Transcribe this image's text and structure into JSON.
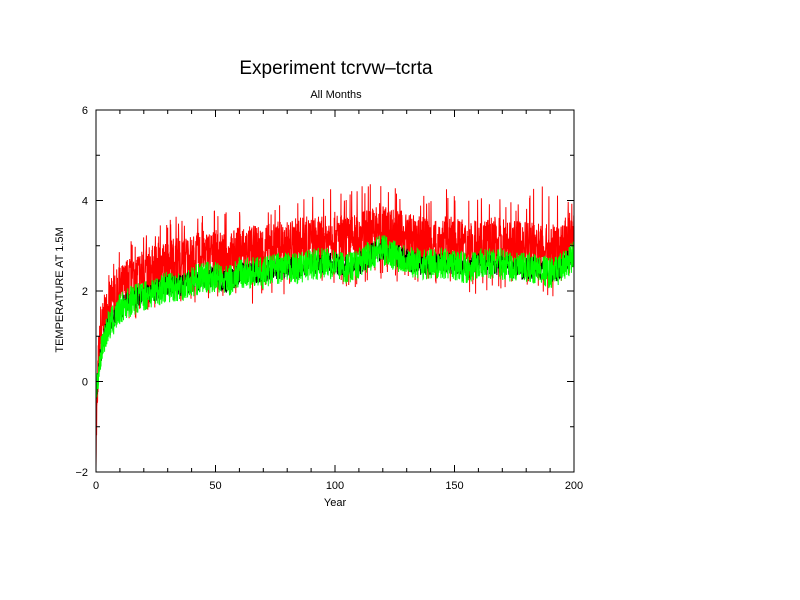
{
  "chart_data": {
    "type": "line",
    "title": "Experiment tcrvw–tcrta",
    "subtitle": "All Months",
    "xlabel": "Year",
    "ylabel": "TEMPERATURE AT 1.5M",
    "xlim": [
      0,
      200
    ],
    "ylim": [
      -2,
      6
    ],
    "xticks": [
      "0",
      "50",
      "100",
      "150",
      "200"
    ],
    "yticks": [
      "−2",
      "0",
      "2",
      "4",
      "6"
    ],
    "xtick_values": [
      0,
      50,
      100,
      150,
      200
    ],
    "ytick_values": [
      -2,
      0,
      2,
      4,
      6
    ],
    "grid": false,
    "legend": "none",
    "colors": {
      "monthly": "#ff0000",
      "annual": "#000000",
      "smoothed": "#00ff00"
    },
    "x": [
      0,
      1,
      2,
      3,
      5,
      8,
      10,
      15,
      20,
      25,
      30,
      35,
      40,
      45,
      50,
      55,
      60,
      65,
      70,
      75,
      80,
      85,
      90,
      95,
      100,
      105,
      110,
      115,
      118,
      120,
      125,
      130,
      135,
      140,
      145,
      150,
      155,
      160,
      165,
      170,
      175,
      180,
      185,
      190,
      195,
      200
    ],
    "series": [
      {
        "color": "#ff0000",
        "values": [
          -1.5,
          0.5,
          1.0,
          1.3,
          1.6,
          1.9,
          2.0,
          2.3,
          2.4,
          2.5,
          2.6,
          2.7,
          2.7,
          2.8,
          2.8,
          2.7,
          2.9,
          2.9,
          2.9,
          3.0,
          3.0,
          3.1,
          3.1,
          3.1,
          3.2,
          3.1,
          3.2,
          3.3,
          3.4,
          3.4,
          3.3,
          3.2,
          3.1,
          3.1,
          3.1,
          3.1,
          3.0,
          3.1,
          3.1,
          3.1,
          3.0,
          3.0,
          3.0,
          2.9,
          3.0,
          3.3
        ],
        "band": [
          -1.9,
          0.1,
          0.2,
          0.7,
          0.9,
          1.1,
          1.2,
          1.3,
          1.4,
          1.5,
          1.6,
          1.7,
          1.7,
          1.8,
          1.7,
          1.6,
          1.8,
          1.7,
          1.9,
          1.9,
          1.9,
          1.8,
          2.0,
          2.0,
          2.0,
          2.0,
          2.1,
          2.2,
          2.2,
          2.3,
          2.2,
          2.2,
          2.1,
          2.1,
          2.1,
          2.0,
          2.0,
          1.9,
          2.0,
          2.0,
          2.0,
          2.0,
          1.9,
          1.8,
          2.0,
          2.3
        ],
        "band_high": [
          0.2,
          1.3,
          1.8,
          2.2,
          2.6,
          2.8,
          2.9,
          3.2,
          3.3,
          3.4,
          3.6,
          3.7,
          3.7,
          3.8,
          3.9,
          3.8,
          3.9,
          4.0,
          3.9,
          4.0,
          4.0,
          4.1,
          4.1,
          4.2,
          4.4,
          4.2,
          4.3,
          4.4,
          4.4,
          4.4,
          4.3,
          4.2,
          4.2,
          4.1,
          4.4,
          4.1,
          4.0,
          4.1,
          4.1,
          4.1,
          4.0,
          4.1,
          4.4,
          4.2,
          4.1,
          4.0
        ]
      },
      {
        "color": "#000000",
        "values": [
          -0.4,
          0.2,
          0.6,
          0.9,
          1.2,
          1.4,
          1.6,
          1.8,
          1.9,
          2.0,
          2.1,
          2.1,
          2.2,
          2.3,
          2.3,
          2.2,
          2.4,
          2.4,
          2.4,
          2.5,
          2.5,
          2.5,
          2.6,
          2.6,
          2.6,
          2.5,
          2.6,
          2.8,
          2.9,
          2.9,
          2.8,
          2.7,
          2.6,
          2.6,
          2.6,
          2.6,
          2.5,
          2.6,
          2.6,
          2.6,
          2.5,
          2.5,
          2.5,
          2.4,
          2.5,
          2.8
        ]
      },
      {
        "color": "#00ff00",
        "values": [
          -0.4,
          0.2,
          0.6,
          0.9,
          1.2,
          1.4,
          1.6,
          1.8,
          1.9,
          2.0,
          2.1,
          2.1,
          2.2,
          2.3,
          2.3,
          2.2,
          2.4,
          2.4,
          2.4,
          2.5,
          2.5,
          2.5,
          2.6,
          2.6,
          2.6,
          2.5,
          2.6,
          2.8,
          2.9,
          2.9,
          2.8,
          2.7,
          2.6,
          2.6,
          2.6,
          2.6,
          2.5,
          2.6,
          2.6,
          2.6,
          2.5,
          2.5,
          2.5,
          2.4,
          2.5,
          2.8
        ]
      }
    ]
  }
}
